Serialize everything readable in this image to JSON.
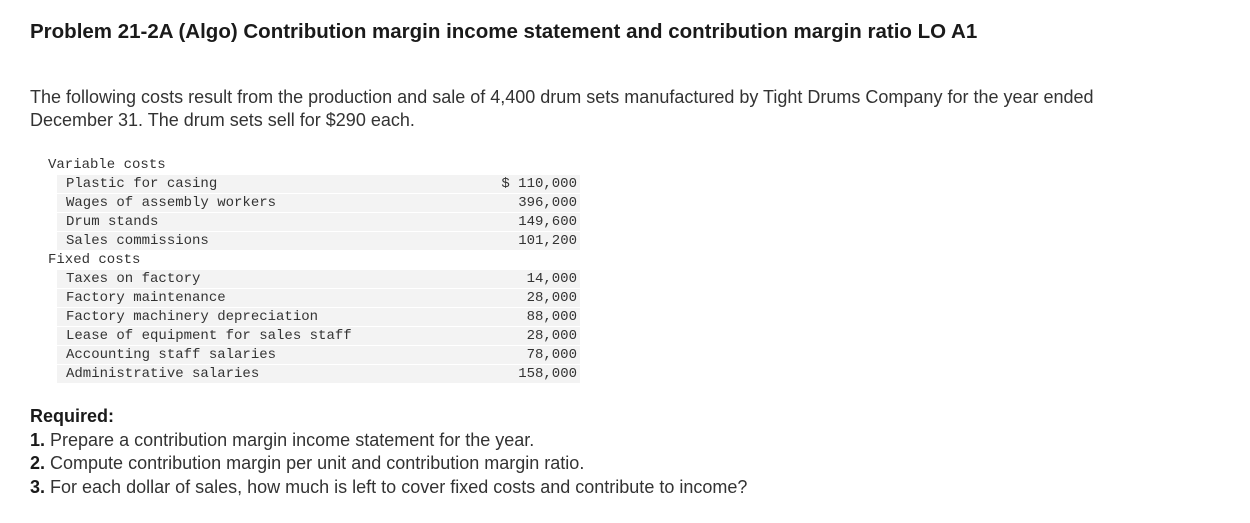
{
  "title": "Problem 21-2A (Algo) Contribution margin income statement and contribution margin ratio LO A1",
  "intro": [
    "The following costs result from the production and sale of 4,400 drum sets manufactured by Tight Drums Company for the year ended",
    "December 31. The drum sets sell for $290 each."
  ],
  "table": {
    "sections": [
      {
        "heading": "Variable costs",
        "items": [
          {
            "label": "Plastic for casing",
            "amount": "$ 110,000"
          },
          {
            "label": "Wages of assembly workers",
            "amount": "396,000"
          },
          {
            "label": "Drum stands",
            "amount": "149,600"
          },
          {
            "label": "Sales commissions",
            "amount": "101,200"
          }
        ]
      },
      {
        "heading": "Fixed costs",
        "items": [
          {
            "label": "Taxes on factory",
            "amount": "14,000"
          },
          {
            "label": "Factory maintenance",
            "amount": "28,000"
          },
          {
            "label": "Factory machinery depreciation",
            "amount": "88,000"
          },
          {
            "label": "Lease of equipment for sales staff",
            "amount": "28,000"
          },
          {
            "label": "Accounting staff salaries",
            "amount": "78,000"
          },
          {
            "label": "Administrative salaries",
            "amount": "158,000"
          }
        ]
      }
    ]
  },
  "required": {
    "heading": "Required:",
    "items": [
      {
        "number": "1.",
        "text": "Prepare a contribution margin income statement for the year."
      },
      {
        "number": "2.",
        "text": "Compute contribution margin per unit and contribution margin ratio."
      },
      {
        "number": "3.",
        "text": "For each dollar of sales, how much is left to cover fixed costs and contribute to income?"
      }
    ]
  }
}
